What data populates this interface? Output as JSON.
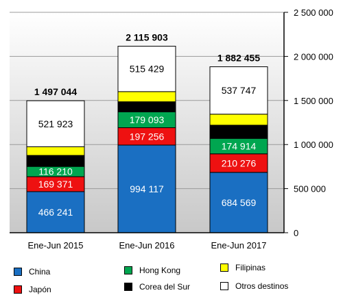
{
  "chart_data": {
    "type": "bar",
    "stacked": true,
    "categories": [
      "Ene-Jun 2015",
      "Ene-Jun 2016",
      "Ene-Jun 2017"
    ],
    "totals": [
      "1 497 044",
      "2 115 903",
      "1 882 455"
    ],
    "total_values": [
      1497044,
      2115903,
      1882455
    ],
    "series": [
      {
        "name": "China",
        "color": "#1a6fc2",
        "values": [
          466241,
          994117,
          684569
        ],
        "labels": [
          "466 241",
          "994 117",
          "684 569"
        ]
      },
      {
        "name": "Japón",
        "color": "#ee1111",
        "values": [
          169371,
          197256,
          210276
        ],
        "labels": [
          "169 371",
          "197 256",
          "210 276"
        ]
      },
      {
        "name": "Hong Kong",
        "color": "#00a650",
        "values": [
          116210,
          179093,
          174914
        ],
        "labels": [
          "116 210",
          "179 093",
          "174 914"
        ]
      },
      {
        "name": "Corea del Sur",
        "color": "#000000",
        "values": [
          125000,
          115000,
          150000
        ],
        "labels": [
          "",
          "",
          ""
        ]
      },
      {
        "name": "Filipinas",
        "color": "#ffff00",
        "values": [
          98299,
          115005,
          124949
        ],
        "labels": [
          "",
          "",
          ""
        ]
      },
      {
        "name": "Otros destinos",
        "color": "#ffffff",
        "values": [
          521923,
          515429,
          537747
        ],
        "labels": [
          "521 923",
          "515 429",
          "537 747"
        ]
      }
    ],
    "y_ticks": [
      0,
      500000,
      1000000,
      1500000,
      2000000,
      2500000
    ],
    "y_tick_labels": [
      "0",
      "500 000",
      "1 000 000",
      "1 500 000",
      "2 000 000",
      "2 500 000"
    ],
    "ylim": [
      0,
      2500000
    ],
    "y_axis_side": "right",
    "grid": true,
    "legend_position": "bottom"
  },
  "legend": [
    {
      "name": "China",
      "color": "#1a6fc2"
    },
    {
      "name": "Japón",
      "color": "#ee1111"
    },
    {
      "name": "Hong Kong",
      "color": "#00a650"
    },
    {
      "name": "Corea del Sur",
      "color": "#000000"
    },
    {
      "name": "Filipinas",
      "color": "#ffff00"
    },
    {
      "name": "Otros destinos",
      "color": "#ffffff"
    }
  ]
}
